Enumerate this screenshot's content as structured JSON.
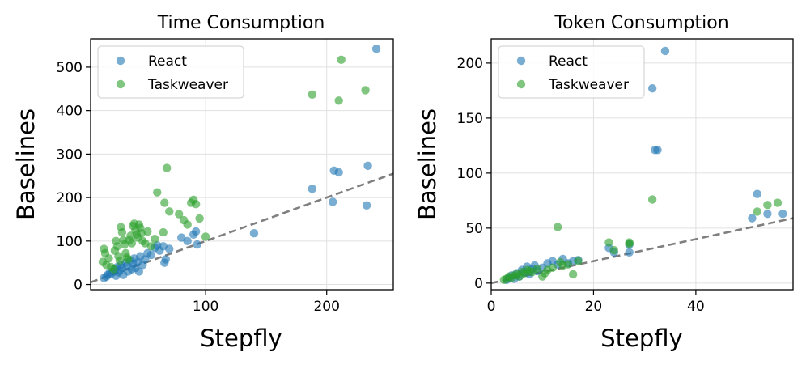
{
  "colors": {
    "react": "#1f77b4",
    "taskweaver": "#2ca02c",
    "diagonal": "#7f7f7f",
    "grid": "#e0e0e0"
  },
  "chart_data": [
    {
      "type": "scatter",
      "title": "Time Consumption",
      "xlabel": "Stepfly",
      "ylabel": "Baselines",
      "xlim": [
        5,
        255
      ],
      "ylim": [
        -12,
        565
      ],
      "xticks": [
        100,
        200
      ],
      "yticks": [
        0,
        100,
        200,
        300,
        400,
        500
      ],
      "grid": true,
      "legend_position": "upper-left",
      "reference_line": "y = x",
      "series": [
        {
          "name": "React",
          "points": [
            [
              16,
              15
            ],
            [
              18,
              18
            ],
            [
              19,
              22
            ],
            [
              21,
              28
            ],
            [
              22,
              25
            ],
            [
              24,
              30
            ],
            [
              25,
              35
            ],
            [
              26,
              20
            ],
            [
              27,
              40
            ],
            [
              28,
              28
            ],
            [
              29,
              32
            ],
            [
              30,
              45
            ],
            [
              31,
              38
            ],
            [
              32,
              22
            ],
            [
              34,
              50
            ],
            [
              35,
              42
            ],
            [
              36,
              30
            ],
            [
              38,
              55
            ],
            [
              39,
              35
            ],
            [
              40,
              48
            ],
            [
              41,
              60
            ],
            [
              42,
              38
            ],
            [
              44,
              52
            ],
            [
              45,
              30
            ],
            [
              46,
              65
            ],
            [
              48,
              45
            ],
            [
              50,
              58
            ],
            [
              52,
              72
            ],
            [
              55,
              68
            ],
            [
              58,
              85
            ],
            [
              60,
              90
            ],
            [
              62,
              78
            ],
            [
              65,
              88
            ],
            [
              66,
              50
            ],
            [
              67,
              58
            ],
            [
              70,
              82
            ],
            [
              80,
              108
            ],
            [
              85,
              100
            ],
            [
              90,
              115
            ],
            [
              92,
              122
            ],
            [
              93,
              92
            ],
            [
              140,
              118
            ],
            [
              188,
              220
            ],
            [
              205,
              190
            ],
            [
              206,
              262
            ],
            [
              210,
              258
            ],
            [
              233,
              182
            ],
            [
              234,
              273
            ],
            [
              241,
              542
            ]
          ]
        },
        {
          "name": "Taskweaver",
          "points": [
            [
              15,
              52
            ],
            [
              16,
              82
            ],
            [
              17,
              72
            ],
            [
              18,
              45
            ],
            [
              20,
              60
            ],
            [
              22,
              40
            ],
            [
              24,
              35
            ],
            [
              25,
              78
            ],
            [
              26,
              100
            ],
            [
              27,
              88
            ],
            [
              28,
              65
            ],
            [
              29,
              55
            ],
            [
              30,
              132
            ],
            [
              31,
              120
            ],
            [
              32,
              102
            ],
            [
              33,
              92
            ],
            [
              34,
              72
            ],
            [
              35,
              62
            ],
            [
              36,
              58
            ],
            [
              37,
              102
            ],
            [
              38,
              112
            ],
            [
              39,
              95
            ],
            [
              40,
              135
            ],
            [
              41,
              140
            ],
            [
              42,
              125
            ],
            [
              43,
              115
            ],
            [
              44,
              108
            ],
            [
              45,
              138
            ],
            [
              46,
              130
            ],
            [
              47,
              118
            ],
            [
              48,
              100
            ],
            [
              50,
              95
            ],
            [
              52,
              122
            ],
            [
              55,
              88
            ],
            [
              58,
              105
            ],
            [
              60,
              212
            ],
            [
              65,
              120
            ],
            [
              66,
              188
            ],
            [
              68,
              268
            ],
            [
              70,
              168
            ],
            [
              78,
              162
            ],
            [
              82,
              148
            ],
            [
              85,
              138
            ],
            [
              88,
              188
            ],
            [
              90,
              195
            ],
            [
              92,
              185
            ],
            [
              95,
              152
            ],
            [
              100,
              110
            ],
            [
              188,
              437
            ],
            [
              210,
              423
            ],
            [
              212,
              517
            ],
            [
              232,
              447
            ]
          ]
        }
      ]
    },
    {
      "type": "scatter",
      "title": "Token Consumption",
      "xlabel": "Stepfly",
      "ylabel": "Baselines",
      "xlim": [
        0,
        59
      ],
      "ylim": [
        -6,
        222
      ],
      "xticks": [
        0,
        20,
        40
      ],
      "yticks": [
        0,
        50,
        100,
        150,
        200
      ],
      "grid": true,
      "legend_position": "upper-left",
      "reference_line": "y = x",
      "series": [
        {
          "name": "React",
          "points": [
            [
              3,
              3
            ],
            [
              3.5,
              5
            ],
            [
              4,
              7
            ],
            [
              4.5,
              4
            ],
            [
              5,
              9
            ],
            [
              5.5,
              6
            ],
            [
              6,
              12
            ],
            [
              6.5,
              10
            ],
            [
              7,
              15
            ],
            [
              7.5,
              8
            ],
            [
              8,
              13
            ],
            [
              8.5,
              16
            ],
            [
              9,
              11
            ],
            [
              10,
              14
            ],
            [
              11,
              18
            ],
            [
              12,
              20
            ],
            [
              13,
              17
            ],
            [
              14,
              22
            ],
            [
              15,
              18
            ],
            [
              16,
              20
            ],
            [
              17,
              21
            ],
            [
              23,
              32
            ],
            [
              24,
              28
            ],
            [
              27,
              28
            ],
            [
              27,
              35
            ],
            [
              31.5,
              177
            ],
            [
              32,
              121
            ],
            [
              32.5,
              121
            ],
            [
              34,
              211
            ],
            [
              51,
              59
            ],
            [
              52,
              81
            ],
            [
              54,
              63
            ],
            [
              57,
              63
            ]
          ]
        },
        {
          "name": "Taskweaver",
          "points": [
            [
              2.5,
              3
            ],
            [
              3,
              4
            ],
            [
              3.5,
              6
            ],
            [
              4,
              5
            ],
            [
              4.5,
              7
            ],
            [
              5,
              8
            ],
            [
              5.5,
              6
            ],
            [
              6,
              10
            ],
            [
              6.5,
              9
            ],
            [
              7,
              12
            ],
            [
              7.5,
              11
            ],
            [
              8,
              10
            ],
            [
              9,
              13
            ],
            [
              10,
              6
            ],
            [
              10.5,
              9
            ],
            [
              11,
              12
            ],
            [
              12,
              14
            ],
            [
              13,
              51
            ],
            [
              13.5,
              19
            ],
            [
              14,
              16
            ],
            [
              15,
              17
            ],
            [
              16,
              8
            ],
            [
              17,
              20
            ],
            [
              23,
              37
            ],
            [
              24,
              30
            ],
            [
              27,
              36
            ],
            [
              27,
              37
            ],
            [
              31.5,
              76
            ],
            [
              52,
              65
            ],
            [
              54,
              71
            ],
            [
              56,
              73
            ]
          ]
        }
      ]
    }
  ]
}
